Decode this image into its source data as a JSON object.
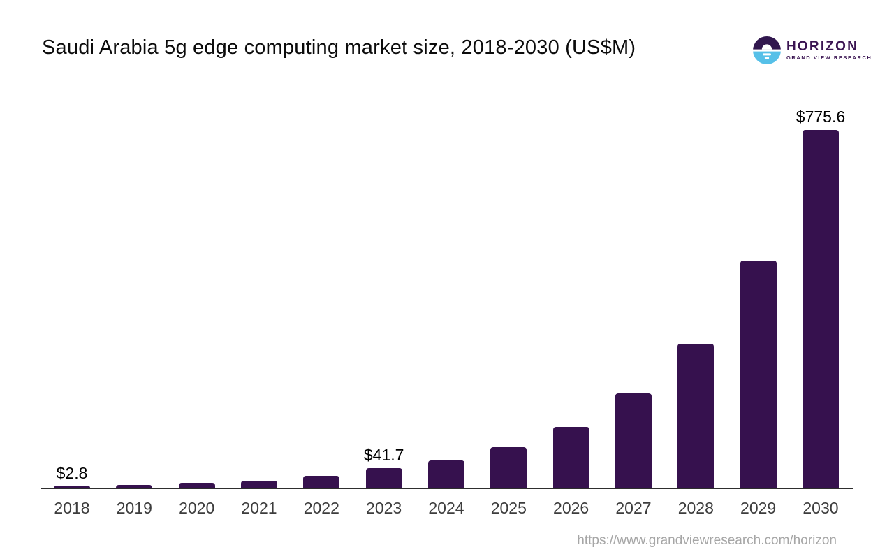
{
  "title": "Saudi Arabia 5g edge computing market size, 2018-2030 (US$M)",
  "logo": {
    "brand": "HORIZON",
    "sub_brand": "GRAND VIEW RESEARCH",
    "icon": "horizon-sunrise-icon",
    "icon_purple": "#31174E",
    "icon_blue": "#56C0E8"
  },
  "footer": {
    "url_text": "https://www.grandviewresearch.com/horizon"
  },
  "chart_data": {
    "type": "bar",
    "title": "Saudi Arabia 5g edge computing market size, 2018-2030 (US$M)",
    "unit": "US$M",
    "categories": [
      "2018",
      "2019",
      "2020",
      "2021",
      "2022",
      "2023",
      "2024",
      "2025",
      "2026",
      "2027",
      "2028",
      "2029",
      "2030"
    ],
    "values": [
      2.8,
      6.8,
      10.2,
      15.2,
      25.0,
      41.7,
      59.1,
      88.5,
      131.8,
      204.5,
      312.6,
      492.8,
      775.6
    ],
    "data_labels": {
      "2018": "$2.8",
      "2023": "$41.7",
      "2030": "$775.6"
    },
    "bar_color": "#36114E",
    "axis_color": "#2e2e2e",
    "tick_color": "#3d3d3d",
    "label_color": "#000000",
    "ylim": [
      0,
      800
    ],
    "grid": false,
    "legend": false,
    "xlabel": "",
    "ylabel": ""
  }
}
